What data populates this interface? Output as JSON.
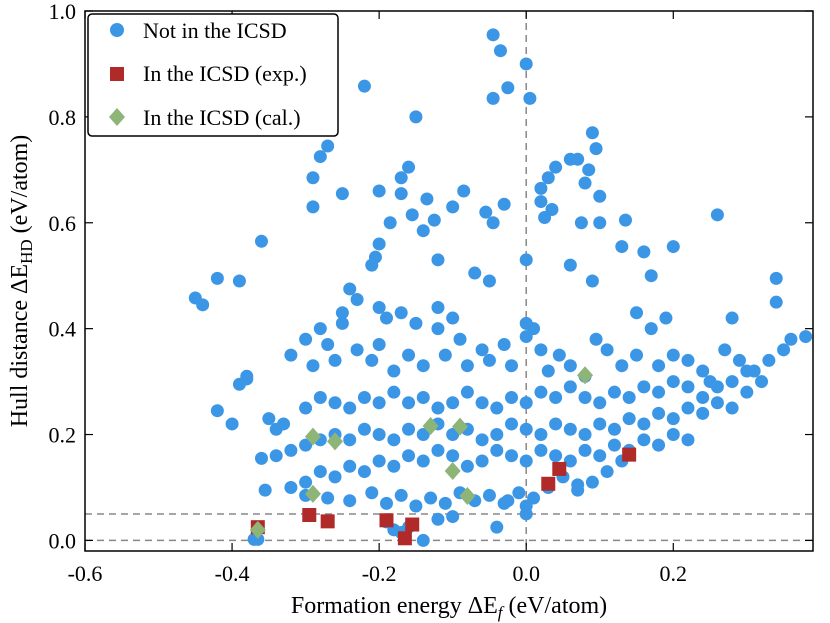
{
  "chart_data": {
    "type": "scatter",
    "xlabel": "Formation energy ΔE_f (eV/atom)",
    "ylabel": "Hull distance ΔE_HD (eV/atom)",
    "xlabel_parts": {
      "prefix": "Formation energy ΔE",
      "sub": "f",
      "suffix": " (eV/atom)"
    },
    "ylabel_parts": {
      "prefix": "Hull distance ΔE",
      "sub": "HD",
      "suffix": " (eV/atom)"
    },
    "xlim": [
      -0.6,
      0.39
    ],
    "ylim": [
      -0.02,
      1.0
    ],
    "xticks": [
      -0.6,
      -0.4,
      -0.2,
      0.0,
      0.2
    ],
    "xtick_labels": [
      "-0.6",
      "-0.4",
      "-0.2",
      "0.0",
      "0.2"
    ],
    "yticks": [
      0.0,
      0.2,
      0.4,
      0.6,
      0.8,
      1.0
    ],
    "ytick_labels": [
      "0.0",
      "0.2",
      "0.4",
      "0.6",
      "0.8",
      "1.0"
    ],
    "reference_lines": {
      "vertical_x": [
        0.0
      ],
      "horizontal_y": [
        0.0,
        0.05
      ]
    },
    "legend_position": "top-left",
    "series": [
      {
        "name": "Not in the ICSD",
        "marker": "circle",
        "color": "#3c96e6",
        "points": [
          [
            -0.045,
            0.955
          ],
          [
            -0.035,
            0.925
          ],
          [
            -0.025,
            0.855
          ],
          [
            -0.045,
            0.835
          ],
          [
            0.0,
            0.9
          ],
          [
            0.005,
            0.835
          ],
          [
            -0.22,
            0.858
          ],
          [
            -0.15,
            0.8
          ],
          [
            -0.27,
            0.745
          ],
          [
            -0.28,
            0.725
          ],
          [
            -0.29,
            0.685
          ],
          [
            -0.29,
            0.63
          ],
          [
            -0.25,
            0.655
          ],
          [
            -0.16,
            0.705
          ],
          [
            -0.17,
            0.685
          ],
          [
            -0.2,
            0.66
          ],
          [
            -0.17,
            0.655
          ],
          [
            -0.135,
            0.645
          ],
          [
            -0.125,
            0.605
          ],
          [
            -0.155,
            0.615
          ],
          [
            -0.185,
            0.6
          ],
          [
            -0.2,
            0.56
          ],
          [
            -0.205,
            0.535
          ],
          [
            -0.21,
            0.52
          ],
          [
            -0.14,
            0.585
          ],
          [
            -0.085,
            0.66
          ],
          [
            -0.1,
            0.63
          ],
          [
            -0.045,
            0.6
          ],
          [
            -0.03,
            0.635
          ],
          [
            -0.055,
            0.62
          ],
          [
            0.04,
            0.705
          ],
          [
            0.03,
            0.685
          ],
          [
            0.02,
            0.665
          ],
          [
            0.02,
            0.64
          ],
          [
            0.035,
            0.625
          ],
          [
            0.025,
            0.61
          ],
          [
            0.06,
            0.72
          ],
          [
            0.09,
            0.77
          ],
          [
            0.095,
            0.74
          ],
          [
            0.08,
            0.675
          ],
          [
            0.07,
            0.72
          ],
          [
            0.085,
            0.7
          ],
          [
            0.1,
            0.65
          ],
          [
            0.1,
            0.6
          ],
          [
            0.075,
            0.6
          ],
          [
            0.135,
            0.605
          ],
          [
            0.26,
            0.615
          ],
          [
            -0.36,
            0.565
          ],
          [
            -0.42,
            0.495
          ],
          [
            -0.39,
            0.49
          ],
          [
            -0.45,
            0.458
          ],
          [
            -0.44,
            0.445
          ],
          [
            0.13,
            0.555
          ],
          [
            0.16,
            0.545
          ],
          [
            0.2,
            0.555
          ],
          [
            0.17,
            0.5
          ],
          [
            0.34,
            0.495
          ],
          [
            0.34,
            0.45
          ],
          [
            -0.12,
            0.53
          ],
          [
            -0.07,
            0.505
          ],
          [
            -0.05,
            0.49
          ],
          [
            0.0,
            0.53
          ],
          [
            0.06,
            0.52
          ],
          [
            0.09,
            0.49
          ],
          [
            -0.24,
            0.475
          ],
          [
            -0.23,
            0.455
          ],
          [
            -0.25,
            0.43
          ],
          [
            -0.25,
            0.41
          ],
          [
            -0.2,
            0.44
          ],
          [
            -0.19,
            0.42
          ],
          [
            -0.17,
            0.43
          ],
          [
            -0.15,
            0.41
          ],
          [
            -0.12,
            0.44
          ],
          [
            -0.12,
            0.4
          ],
          [
            -0.1,
            0.42
          ],
          [
            -0.09,
            0.38
          ],
          [
            -0.28,
            0.4
          ],
          [
            -0.3,
            0.38
          ],
          [
            -0.32,
            0.35
          ],
          [
            -0.29,
            0.33
          ],
          [
            -0.27,
            0.37
          ],
          [
            -0.26,
            0.34
          ],
          [
            -0.23,
            0.36
          ],
          [
            -0.2,
            0.37
          ],
          [
            -0.21,
            0.34
          ],
          [
            -0.18,
            0.32
          ],
          [
            -0.16,
            0.35
          ],
          [
            -0.14,
            0.33
          ],
          [
            -0.11,
            0.35
          ],
          [
            -0.08,
            0.33
          ],
          [
            -0.06,
            0.36
          ],
          [
            -0.05,
            0.34
          ],
          [
            -0.03,
            0.37
          ],
          [
            -0.02,
            0.33
          ],
          [
            0.0,
            0.41
          ],
          [
            0.0,
            0.385
          ],
          [
            0.01,
            0.4
          ],
          [
            0.02,
            0.36
          ],
          [
            0.03,
            0.32
          ],
          [
            0.045,
            0.35
          ],
          [
            0.06,
            0.33
          ],
          [
            0.08,
            0.31
          ],
          [
            0.095,
            0.38
          ],
          [
            0.11,
            0.36
          ],
          [
            0.13,
            0.33
          ],
          [
            0.15,
            0.35
          ],
          [
            0.18,
            0.33
          ],
          [
            0.2,
            0.35
          ],
          [
            0.22,
            0.34
          ],
          [
            0.24,
            0.32
          ],
          [
            0.25,
            0.3
          ],
          [
            0.27,
            0.36
          ],
          [
            0.29,
            0.34
          ],
          [
            0.31,
            0.32
          ],
          [
            0.33,
            0.34
          ],
          [
            0.35,
            0.36
          ],
          [
            0.36,
            0.38
          ],
          [
            0.38,
            0.385
          ],
          [
            0.28,
            0.42
          ],
          [
            0.19,
            0.42
          ],
          [
            0.17,
            0.4
          ],
          [
            0.15,
            0.43
          ],
          [
            -0.38,
            0.305
          ],
          [
            -0.38,
            0.31
          ],
          [
            -0.39,
            0.295
          ],
          [
            -0.4,
            0.22
          ],
          [
            -0.42,
            0.245
          ],
          [
            -0.35,
            0.23
          ],
          [
            -0.34,
            0.21
          ],
          [
            -0.33,
            0.22
          ],
          [
            -0.3,
            0.25
          ],
          [
            -0.28,
            0.27
          ],
          [
            -0.26,
            0.26
          ],
          [
            -0.24,
            0.25
          ],
          [
            -0.22,
            0.27
          ],
          [
            -0.2,
            0.26
          ],
          [
            -0.18,
            0.28
          ],
          [
            -0.16,
            0.26
          ],
          [
            -0.14,
            0.27
          ],
          [
            -0.12,
            0.25
          ],
          [
            -0.1,
            0.26
          ],
          [
            -0.08,
            0.28
          ],
          [
            -0.06,
            0.26
          ],
          [
            -0.04,
            0.25
          ],
          [
            -0.02,
            0.27
          ],
          [
            0.0,
            0.26
          ],
          [
            0.02,
            0.28
          ],
          [
            0.04,
            0.27
          ],
          [
            0.06,
            0.29
          ],
          [
            0.08,
            0.27
          ],
          [
            0.1,
            0.26
          ],
          [
            0.12,
            0.28
          ],
          [
            0.14,
            0.27
          ],
          [
            0.16,
            0.29
          ],
          [
            0.18,
            0.28
          ],
          [
            0.2,
            0.3
          ],
          [
            0.22,
            0.29
          ],
          [
            0.24,
            0.27
          ],
          [
            0.26,
            0.29
          ],
          [
            0.28,
            0.3
          ],
          [
            0.3,
            0.28
          ],
          [
            0.32,
            0.3
          ],
          [
            0.3,
            0.32
          ],
          [
            -0.36,
            0.155
          ],
          [
            -0.34,
            0.16
          ],
          [
            -0.32,
            0.17
          ],
          [
            -0.3,
            0.18
          ],
          [
            -0.28,
            0.19
          ],
          [
            -0.26,
            0.2
          ],
          [
            -0.24,
            0.19
          ],
          [
            -0.22,
            0.21
          ],
          [
            -0.2,
            0.2
          ],
          [
            -0.18,
            0.19
          ],
          [
            -0.16,
            0.21
          ],
          [
            -0.14,
            0.2
          ],
          [
            -0.12,
            0.22
          ],
          [
            -0.1,
            0.2
          ],
          [
            -0.08,
            0.21
          ],
          [
            -0.06,
            0.19
          ],
          [
            -0.04,
            0.2
          ],
          [
            -0.02,
            0.22
          ],
          [
            0.0,
            0.21
          ],
          [
            0.02,
            0.2
          ],
          [
            0.04,
            0.22
          ],
          [
            0.06,
            0.21
          ],
          [
            0.08,
            0.2
          ],
          [
            0.1,
            0.22
          ],
          [
            0.12,
            0.21
          ],
          [
            0.14,
            0.23
          ],
          [
            0.16,
            0.22
          ],
          [
            0.18,
            0.24
          ],
          [
            0.2,
            0.23
          ],
          [
            0.22,
            0.25
          ],
          [
            0.24,
            0.24
          ],
          [
            0.26,
            0.26
          ],
          [
            0.28,
            0.25
          ],
          [
            -0.32,
            0.1
          ],
          [
            -0.3,
            0.11
          ],
          [
            -0.28,
            0.13
          ],
          [
            -0.26,
            0.12
          ],
          [
            -0.24,
            0.14
          ],
          [
            -0.22,
            0.13
          ],
          [
            -0.2,
            0.15
          ],
          [
            -0.18,
            0.14
          ],
          [
            -0.16,
            0.16
          ],
          [
            -0.14,
            0.15
          ],
          [
            -0.12,
            0.17
          ],
          [
            -0.1,
            0.16
          ],
          [
            -0.08,
            0.14
          ],
          [
            -0.06,
            0.15
          ],
          [
            -0.04,
            0.17
          ],
          [
            -0.02,
            0.16
          ],
          [
            0.0,
            0.15
          ],
          [
            0.02,
            0.17
          ],
          [
            0.04,
            0.16
          ],
          [
            0.06,
            0.15
          ],
          [
            0.08,
            0.17
          ],
          [
            0.1,
            0.16
          ],
          [
            0.12,
            0.18
          ],
          [
            0.14,
            0.17
          ],
          [
            0.16,
            0.19
          ],
          [
            0.18,
            0.18
          ],
          [
            0.2,
            0.2
          ],
          [
            0.22,
            0.19
          ],
          [
            -0.355,
            0.095
          ],
          [
            -0.3,
            0.085
          ],
          [
            -0.27,
            0.08
          ],
          [
            -0.24,
            0.075
          ],
          [
            -0.21,
            0.09
          ],
          [
            -0.19,
            0.07
          ],
          [
            -0.17,
            0.085
          ],
          [
            -0.15,
            0.065
          ],
          [
            -0.13,
            0.08
          ],
          [
            -0.11,
            0.07
          ],
          [
            -0.09,
            0.09
          ],
          [
            -0.07,
            0.075
          ],
          [
            -0.05,
            0.085
          ],
          [
            -0.03,
            0.07
          ],
          [
            -0.01,
            0.09
          ],
          [
            0.0,
            0.065
          ],
          [
            0.01,
            0.08
          ],
          [
            0.03,
            0.1
          ],
          [
            0.05,
            0.12
          ],
          [
            0.07,
            0.095
          ],
          [
            0.09,
            0.11
          ],
          [
            0.11,
            0.13
          ],
          [
            0.13,
            0.15
          ],
          [
            -0.37,
            0.002
          ],
          [
            -0.365,
            0.002
          ],
          [
            -0.19,
            0.035
          ],
          [
            -0.18,
            0.02
          ],
          [
            -0.17,
            0.015
          ],
          [
            -0.16,
            0.025
          ],
          [
            -0.14,
            0.0
          ],
          [
            -0.12,
            0.04
          ],
          [
            -0.1,
            0.045
          ],
          [
            -0.04,
            0.025
          ],
          [
            0.0,
            0.05
          ],
          [
            -0.025,
            0.075
          ],
          [
            0.07,
            0.105
          ]
        ]
      },
      {
        "name": "In the ICSD (exp.)",
        "marker": "square",
        "color": "#b02a2a",
        "points": [
          [
            -0.365,
            0.025
          ],
          [
            -0.295,
            0.048
          ],
          [
            -0.27,
            0.036
          ],
          [
            -0.19,
            0.038
          ],
          [
            -0.165,
            0.004
          ],
          [
            -0.155,
            0.03
          ],
          [
            0.03,
            0.107
          ],
          [
            0.045,
            0.135
          ],
          [
            0.14,
            0.162
          ]
        ]
      },
      {
        "name": "In the ICSD (cal.)",
        "marker": "diamond",
        "color": "#8db577",
        "points": [
          [
            -0.365,
            0.02
          ],
          [
            -0.29,
            0.088
          ],
          [
            -0.29,
            0.196
          ],
          [
            -0.26,
            0.187
          ],
          [
            -0.13,
            0.216
          ],
          [
            -0.09,
            0.215
          ],
          [
            -0.1,
            0.131
          ],
          [
            -0.08,
            0.084
          ],
          [
            0.08,
            0.312
          ]
        ]
      }
    ]
  }
}
